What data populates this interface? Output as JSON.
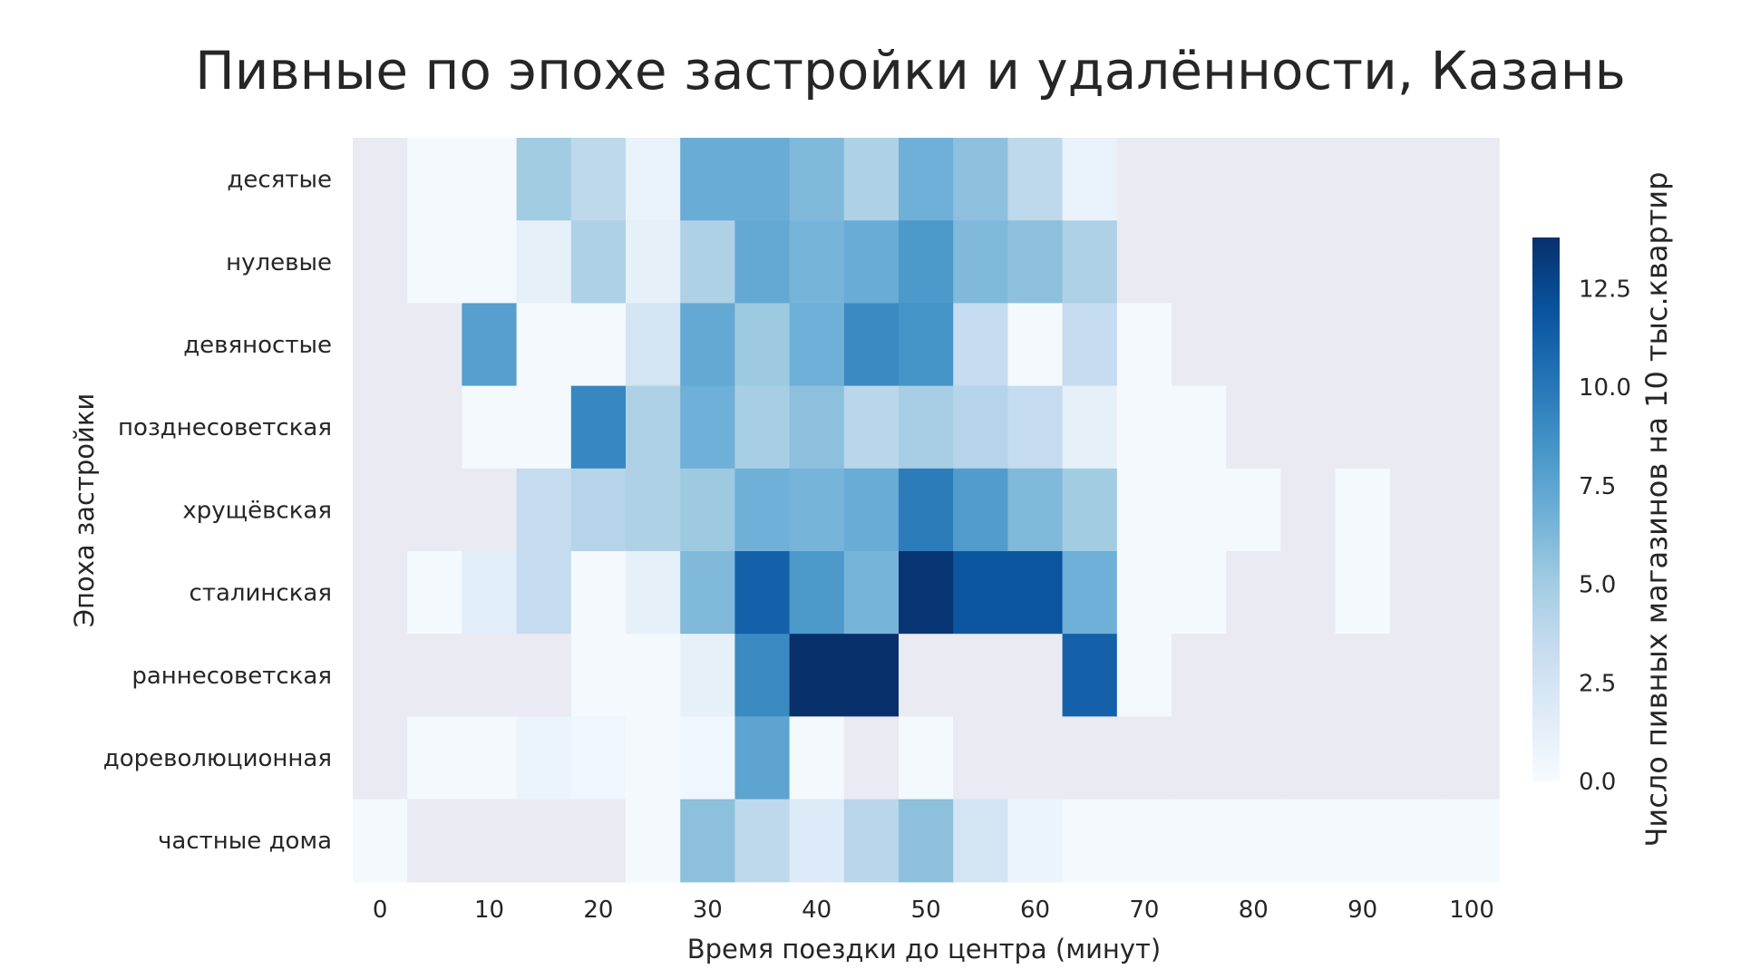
{
  "chart_data": {
    "type": "heatmap",
    "title": "Пивные по эпохе застройки и удалённости, Казань",
    "xlabel": "Время поездки до центра (минут)",
    "ylabel": "Эпоха застройки",
    "x_tick_labels": [
      "0",
      "10",
      "20",
      "30",
      "40",
      "50",
      "60",
      "70",
      "80",
      "90",
      "100"
    ],
    "x_bins": [
      0,
      5,
      10,
      15,
      20,
      25,
      30,
      35,
      40,
      45,
      50,
      55,
      60,
      65,
      70,
      75,
      80,
      85,
      90,
      95,
      100
    ],
    "y_categories": [
      "десятые",
      "нулевые",
      "девяностые",
      "позднесоветская",
      "хрущёвская",
      "сталинская",
      "раннесоветская",
      "дореволюционная",
      "частные дома"
    ],
    "values": [
      [
        null,
        0.2,
        0.2,
        5.0,
        3.8,
        1.0,
        7.0,
        7.0,
        6.2,
        4.5,
        6.8,
        5.8,
        3.8,
        1.0,
        null,
        null,
        null,
        null,
        null,
        null,
        null
      ],
      [
        null,
        0.2,
        0.2,
        1.2,
        4.5,
        1.2,
        4.5,
        7.2,
        6.5,
        7.0,
        8.2,
        6.2,
        5.8,
        4.5,
        null,
        null,
        null,
        null,
        null,
        null,
        null
      ],
      [
        null,
        null,
        7.8,
        0.2,
        0.2,
        2.5,
        7.2,
        5.2,
        6.8,
        9.0,
        8.5,
        3.5,
        0.2,
        3.5,
        0.2,
        null,
        null,
        null,
        null,
        null,
        null
      ],
      [
        null,
        null,
        0.2,
        0.2,
        9.2,
        4.5,
        6.8,
        4.8,
        5.8,
        4.0,
        4.8,
        4.2,
        3.5,
        1.2,
        0.2,
        0.2,
        null,
        null,
        null,
        null,
        null
      ],
      [
        null,
        null,
        null,
        3.5,
        4.2,
        4.5,
        5.2,
        6.8,
        6.5,
        7.0,
        9.8,
        8.0,
        6.2,
        5.0,
        0.2,
        0.2,
        0.2,
        null,
        0.2,
        null,
        null
      ],
      [
        null,
        0.2,
        1.5,
        3.5,
        0.2,
        1.2,
        6.2,
        11.2,
        8.2,
        6.5,
        13.5,
        11.8,
        11.8,
        6.8,
        0.2,
        0.2,
        null,
        null,
        0.2,
        null,
        null
      ],
      [
        null,
        null,
        null,
        null,
        0.2,
        0.2,
        1.2,
        9.0,
        13.8,
        13.8,
        null,
        null,
        null,
        11.2,
        0.2,
        null,
        null,
        null,
        null,
        null,
        null
      ],
      [
        null,
        0.2,
        0.2,
        0.8,
        0.5,
        0.2,
        0.5,
        7.5,
        0.2,
        null,
        0.2,
        null,
        null,
        null,
        null,
        null,
        null,
        null,
        null,
        null,
        null
      ],
      [
        0.2,
        null,
        null,
        null,
        null,
        0.2,
        5.8,
        3.8,
        1.8,
        4.0,
        5.8,
        2.5,
        0.8,
        0.2,
        0.2,
        0.2,
        0.2,
        0.2,
        0.2,
        0.2,
        0.2
      ]
    ],
    "colorbar": {
      "label": "Число пивных магазинов на 10 тыс.квартир",
      "min": 0,
      "max": 13.8,
      "ticks": [
        0.0,
        2.5,
        5.0,
        7.5,
        10.0,
        12.5
      ],
      "tick_labels": [
        "0.0",
        "2.5",
        "5.0",
        "7.5",
        "10.0",
        "12.5"
      ]
    },
    "colormap": "Blues",
    "missing_color": "#eaeaf2",
    "grid": false
  }
}
